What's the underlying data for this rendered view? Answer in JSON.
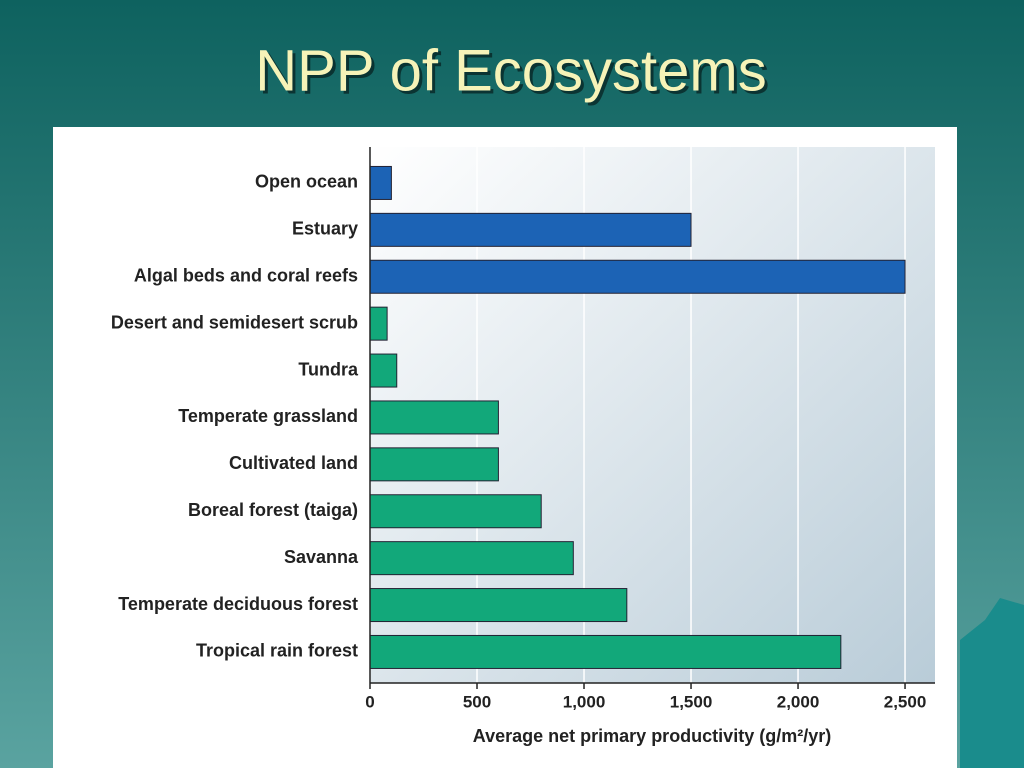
{
  "chart_data": {
    "type": "hbar",
    "title": "NPP of Ecosystems",
    "categories": [
      "Open ocean",
      "Estuary",
      "Algal beds and coral reefs",
      "Desert and semidesert scrub",
      "Tundra",
      "Temperate grassland",
      "Cultivated land",
      "Boreal forest (taiga)",
      "Savanna",
      "Temperate deciduous forest",
      "Tropical rain forest"
    ],
    "values": [
      100,
      1500,
      2500,
      80,
      125,
      600,
      600,
      800,
      950,
      1200,
      2200
    ],
    "colors": [
      "#1c63b5",
      "#1c63b5",
      "#1c63b5",
      "#12a87a",
      "#12a87a",
      "#12a87a",
      "#12a87a",
      "#12a87a",
      "#12a87a",
      "#12a87a",
      "#12a87a"
    ],
    "xlabel": "Average net primary productivity (g/m²/yr)",
    "xlim": [
      0,
      2640
    ],
    "xticks": [
      0,
      500,
      {
        "value": 1000,
        "label": "1,000"
      },
      {
        "value": 1500,
        "label": "1,500"
      },
      {
        "value": 2000,
        "label": "2,000"
      },
      {
        "value": 2500,
        "label": "2,500"
      }
    ],
    "grid": true
  }
}
